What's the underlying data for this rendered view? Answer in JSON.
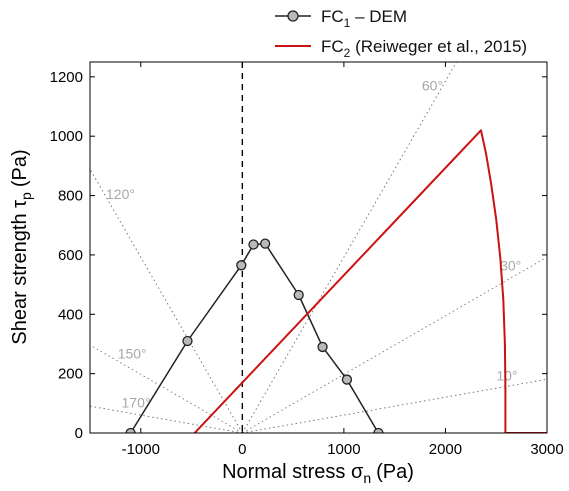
{
  "chart_data": {
    "type": "line",
    "xlabel": "Normal stress σ",
    "xlabel_sub": "n",
    "xlabel_unit": "(Pa)",
    "ylabel": "Shear strength τ",
    "ylabel_sub": "p",
    "ylabel_unit": "(Pa)",
    "xlim": [
      -1500,
      3000
    ],
    "ylim": [
      0,
      1250
    ],
    "xticks": [
      {
        "value": -1000,
        "label": "-1000"
      },
      {
        "value": 0,
        "label": "0"
      },
      {
        "value": 1000,
        "label": "1000"
      },
      {
        "value": 2000,
        "label": "2000"
      },
      {
        "value": 3000,
        "label": "3000"
      }
    ],
    "yticks": [
      {
        "value": 0,
        "label": "0"
      },
      {
        "value": 200,
        "label": "200"
      },
      {
        "value": 400,
        "label": "400"
      },
      {
        "value": 600,
        "label": "600"
      },
      {
        "value": 800,
        "label": "800"
      },
      {
        "value": 1000,
        "label": "1000"
      },
      {
        "value": 1200,
        "label": "1200"
      }
    ],
    "grid": false,
    "legend_position": "top",
    "series": [
      {
        "name_main": "FC",
        "name_sub": "1",
        "name_rest": " – DEM",
        "color": "#222222",
        "marker": "circle",
        "marker_fill": "#b9b9b9",
        "x": [
          -1100,
          -540,
          -10,
          110,
          225,
          555,
          790,
          1030,
          1340
        ],
        "y": [
          0,
          310,
          565,
          635,
          638,
          465,
          290,
          180,
          0
        ]
      },
      {
        "name_main": "FC",
        "name_sub": "2",
        "name_rest": " (Reiweger et al., 2015)",
        "color": "#cc1111",
        "marker": "none",
        "x": [
          -470,
          2350,
          2400,
          2450,
          2500,
          2540,
          2570,
          2585,
          2590,
          2590,
          3000
        ],
        "y": [
          0,
          1020,
          940,
          840,
          720,
          590,
          450,
          300,
          150,
          0,
          0
        ]
      }
    ],
    "vertical_reference_line": {
      "x": 0,
      "style": "dashed",
      "color": "#000000"
    },
    "angle_lines": {
      "origin": [
        0,
        0
      ],
      "color": "#777777",
      "label_color": "#a8a8a8",
      "lines": [
        {
          "angle_deg": 10,
          "label": "10°"
        },
        {
          "angle_deg": 30,
          "label": "30°"
        },
        {
          "angle_deg": 60,
          "label": "60°"
        },
        {
          "angle_deg": 120,
          "label": "120°"
        },
        {
          "angle_deg": 150,
          "label": "150°"
        },
        {
          "angle_deg": 170,
          "label": "170°"
        }
      ]
    }
  }
}
